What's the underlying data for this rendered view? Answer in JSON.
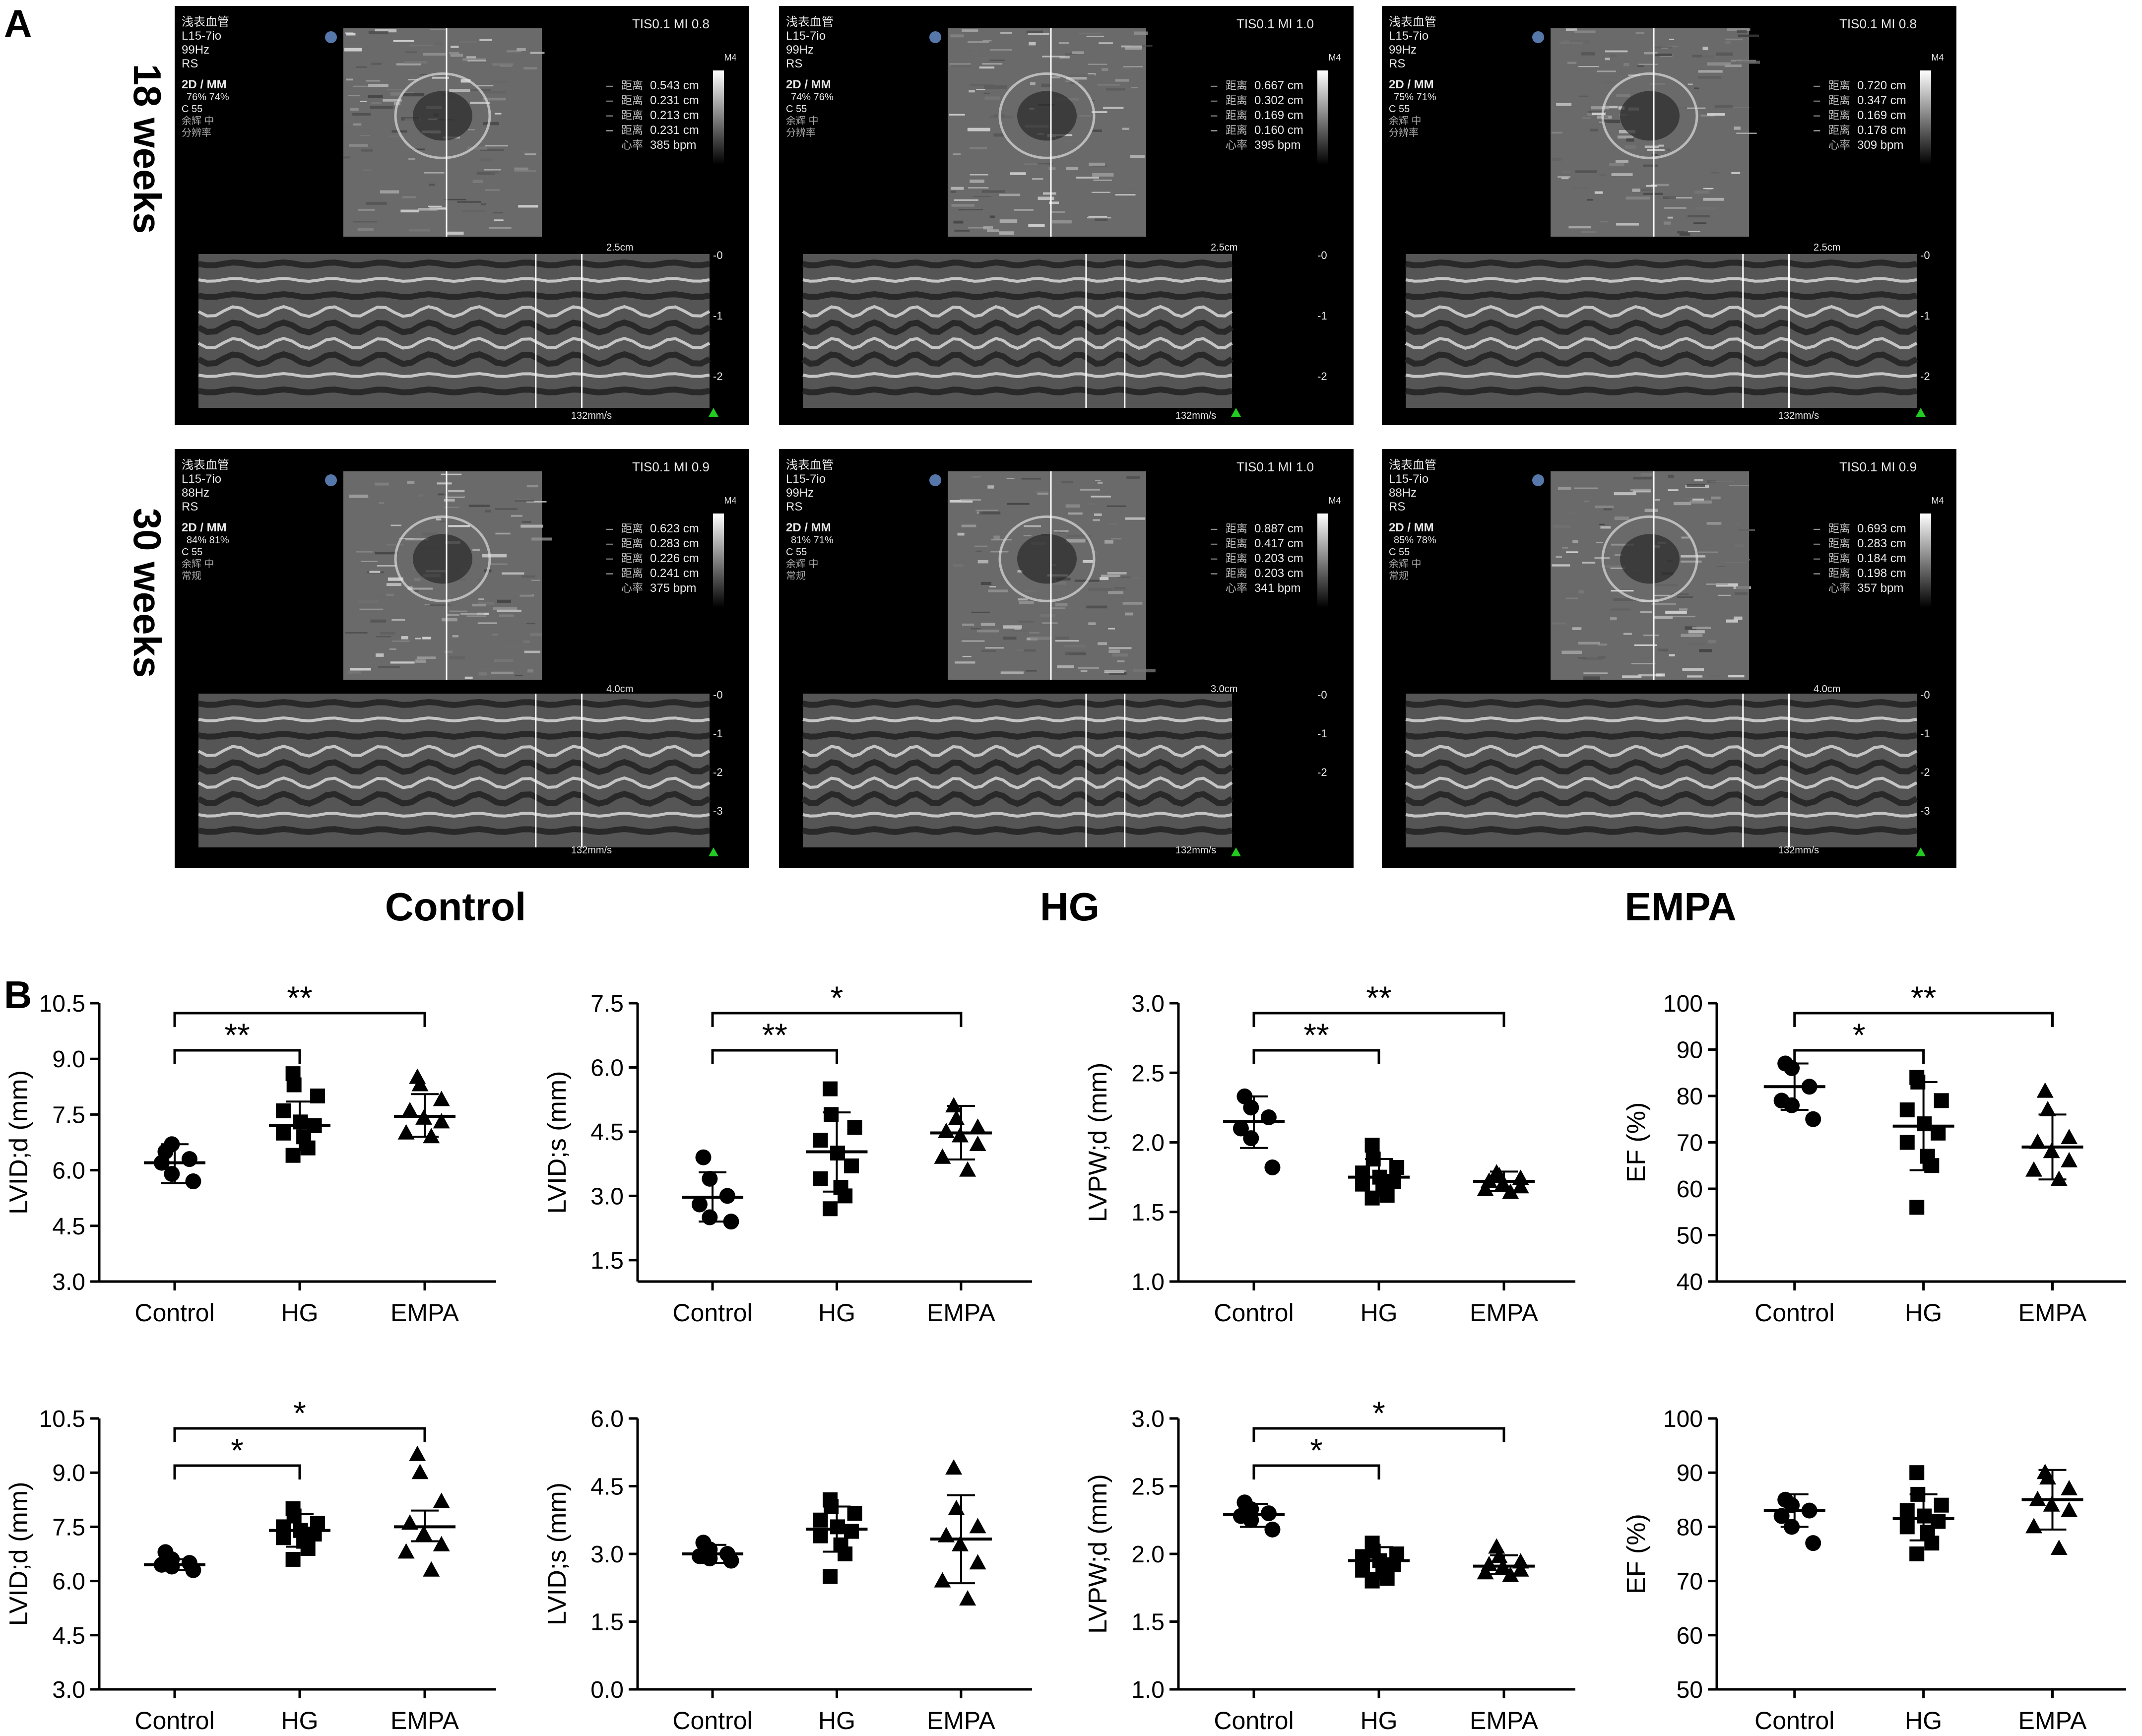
{
  "panel_labels": {
    "a": "A",
    "b": "B"
  },
  "row_labels": [
    "18 weeks",
    "30 weeks"
  ],
  "column_labels": [
    "Control",
    "HG",
    "EMPA"
  ],
  "ultrasound": {
    "header_lines": [
      "浅表血管",
      "L15-7io"
    ],
    "status": {
      "18_weeks": [
        "TIS0.1  MI 0.8",
        "TIS0.1  MI 1.0",
        "TIS0.1  MI 0.8"
      ],
      "30_weeks": [
        "TIS0.1  MI 0.9",
        "TIS0.1  MI 1.0",
        "TIS0.1  MI 0.9"
      ]
    },
    "panels": [
      {
        "row": 0,
        "col": 0,
        "freq": "99Hz",
        "mode": "2D / MM",
        "pct": "76%  74%",
        "extra": [
          "RS",
          "C 55",
          "余辉 中",
          "分辨率"
        ],
        "measure_label": "距离",
        "distances": [
          "0.543 cm",
          "0.231 cm",
          "0.213 cm",
          "0.231 cm"
        ],
        "hr_label": "心率",
        "hr": "385 bpm",
        "depth": "2.5cm",
        "speed": "132mm/s",
        "m4": "M4",
        "depth_ticks": [
          "0",
          "1",
          "2"
        ]
      },
      {
        "row": 0,
        "col": 1,
        "freq": "99Hz",
        "mode": "2D / MM",
        "pct": "74%  76%",
        "extra": [
          "RS",
          "C 55",
          "余辉 中",
          "分辨率"
        ],
        "measure_label": "距离",
        "distances": [
          "0.667 cm",
          "0.302 cm",
          "0.169 cm",
          "0.160 cm"
        ],
        "hr_label": "心率",
        "hr": "395 bpm",
        "depth": "2.5cm",
        "speed": "132mm/s",
        "m4": "M4",
        "depth_ticks": [
          "0",
          "1",
          "2"
        ]
      },
      {
        "row": 0,
        "col": 2,
        "freq": "99Hz",
        "mode": "2D / MM",
        "pct": "75%  71%",
        "extra": [
          "RS",
          "C 55",
          "余辉 中",
          "分辨率"
        ],
        "measure_label": "距离",
        "distances": [
          "0.720 cm",
          "0.347 cm",
          "0.169 cm",
          "0.178 cm"
        ],
        "hr_label": "心率",
        "hr": "309 bpm",
        "depth": "2.5cm",
        "speed": "132mm/s",
        "m4": "M4",
        "depth_ticks": [
          "0",
          "1",
          "2"
        ]
      },
      {
        "row": 1,
        "col": 0,
        "freq": "88Hz",
        "mode": "2D / MM",
        "pct": "84%  81%",
        "extra": [
          "RS",
          "C 55",
          "余辉 中",
          "常规"
        ],
        "measure_label": "距离",
        "distances": [
          "0.623 cm",
          "0.283 cm",
          "0.226 cm",
          "0.241 cm"
        ],
        "hr_label": "心率",
        "hr": "375 bpm",
        "depth": "4.0cm",
        "speed": "132mm/s",
        "m4": "M4",
        "depth_ticks": [
          "0",
          "1",
          "2",
          "3"
        ]
      },
      {
        "row": 1,
        "col": 1,
        "freq": "99Hz",
        "mode": "2D / MM",
        "pct": "81%  71%",
        "extra": [
          "RS",
          "C 55",
          "余辉 中",
          "常规"
        ],
        "measure_label": "距离",
        "distances": [
          "0.887 cm",
          "0.417 cm",
          "0.203 cm",
          "0.203 cm"
        ],
        "hr_label": "心率",
        "hr": "341 bpm",
        "depth": "3.0cm",
        "speed": "132mm/s",
        "m4": "M4",
        "depth_ticks": [
          "0",
          "1",
          "2"
        ]
      },
      {
        "row": 1,
        "col": 2,
        "freq": "88Hz",
        "mode": "2D / MM",
        "pct": "85%  78%",
        "extra": [
          "RS",
          "C 55",
          "余辉 中",
          "常规"
        ],
        "measure_label": "距离",
        "distances": [
          "0.693 cm",
          "0.283 cm",
          "0.184 cm",
          "0.198 cm"
        ],
        "hr_label": "心率",
        "hr": "357 bpm",
        "depth": "4.0cm",
        "speed": "132mm/s",
        "m4": "M4",
        "depth_ticks": [
          "0",
          "1",
          "2",
          "3"
        ]
      }
    ]
  },
  "chart_data": [
    {
      "type": "scatter",
      "ylabel": "LVID;d (mm)",
      "ylim": [
        3.0,
        10.5
      ],
      "yticks": [
        "3.0",
        "4.5",
        "6.0",
        "7.5",
        "9.0",
        "10.5"
      ],
      "categories": [
        "Control",
        "HG",
        "EMPA"
      ],
      "groups": [
        {
          "name": "Control",
          "marker": "circle",
          "points": [
            6.5,
            6.7,
            6.3,
            6.2,
            5.9,
            5.7
          ],
          "mean": 6.2,
          "sd": [
            5.65,
            6.7
          ]
        },
        {
          "name": "HG",
          "marker": "square",
          "points": [
            8.6,
            8.3,
            8.0,
            7.6,
            7.3,
            7.2,
            7.0,
            6.9,
            6.6,
            6.4
          ],
          "mean": 7.2,
          "sd": [
            6.55,
            7.85
          ]
        },
        {
          "name": "EMPA",
          "marker": "triangle",
          "points": [
            8.5,
            8.3,
            7.9,
            7.6,
            7.4,
            7.3,
            7.0,
            6.9
          ],
          "mean": 7.45,
          "sd": [
            6.9,
            8.05
          ]
        }
      ],
      "brackets": [
        {
          "from": 0,
          "to": 1,
          "label": "**"
        },
        {
          "from": 0,
          "to": 2,
          "label": "**"
        }
      ]
    },
    {
      "type": "scatter",
      "ylabel": "LVID;s (mm)",
      "ylim": [
        1.0,
        7.5
      ],
      "yticks": [
        "1.5",
        "3.0",
        "4.5",
        "6.0",
        "7.5"
      ],
      "categories": [
        "Control",
        "HG",
        "EMPA"
      ],
      "groups": [
        {
          "name": "Control",
          "marker": "circle",
          "points": [
            3.9,
            3.4,
            3.0,
            2.8,
            2.5,
            2.4
          ],
          "mean": 2.97,
          "sd": [
            2.4,
            3.55
          ]
        },
        {
          "name": "HG",
          "marker": "square",
          "points": [
            5.5,
            4.9,
            4.6,
            4.3,
            4.0,
            3.7,
            3.4,
            3.2,
            3.0,
            2.7
          ],
          "mean": 4.03,
          "sd": [
            3.1,
            4.95
          ]
        },
        {
          "name": "EMPA",
          "marker": "triangle",
          "points": [
            5.1,
            4.8,
            4.6,
            4.5,
            4.4,
            4.2,
            3.9,
            3.6
          ],
          "mean": 4.47,
          "sd": [
            3.85,
            5.1
          ]
        }
      ],
      "brackets": [
        {
          "from": 0,
          "to": 1,
          "label": "**"
        },
        {
          "from": 0,
          "to": 2,
          "label": "*"
        }
      ]
    },
    {
      "type": "scatter",
      "ylabel": "LVPW;d (mm)",
      "ylim": [
        1.0,
        3.0
      ],
      "yticks": [
        "1.0",
        "1.5",
        "2.0",
        "2.5",
        "3.0"
      ],
      "categories": [
        "Control",
        "HG",
        "EMPA"
      ],
      "groups": [
        {
          "name": "Control",
          "marker": "circle",
          "points": [
            2.33,
            2.25,
            2.18,
            2.1,
            2.03,
            1.82
          ],
          "mean": 2.15,
          "sd": [
            1.96,
            2.33
          ]
        },
        {
          "name": "HG",
          "marker": "square",
          "points": [
            1.98,
            1.88,
            1.82,
            1.78,
            1.75,
            1.72,
            1.7,
            1.66,
            1.62,
            1.6
          ],
          "mean": 1.75,
          "sd": [
            1.62,
            1.88
          ]
        },
        {
          "name": "EMPA",
          "marker": "triangle",
          "points": [
            1.78,
            1.76,
            1.74,
            1.72,
            1.7,
            1.68,
            1.66,
            1.64
          ],
          "mean": 1.72,
          "sd": [
            1.65,
            1.79
          ]
        }
      ],
      "brackets": [
        {
          "from": 0,
          "to": 1,
          "label": "**"
        },
        {
          "from": 0,
          "to": 2,
          "label": "**"
        }
      ]
    },
    {
      "type": "scatter",
      "ylabel": "EF (%)",
      "ylim": [
        40,
        100
      ],
      "yticks": [
        "40",
        "50",
        "60",
        "70",
        "80",
        "90",
        "100"
      ],
      "categories": [
        "Control",
        "HG",
        "EMPA"
      ],
      "groups": [
        {
          "name": "Control",
          "marker": "circle",
          "points": [
            87,
            86,
            82,
            79,
            78,
            75
          ],
          "mean": 82,
          "sd": [
            77,
            87
          ]
        },
        {
          "name": "HG",
          "marker": "square",
          "points": [
            84,
            83,
            79,
            77,
            74,
            72,
            70,
            67,
            65,
            56
          ],
          "mean": 73.5,
          "sd": [
            64,
            83
          ]
        },
        {
          "name": "EMPA",
          "marker": "triangle",
          "points": [
            81,
            77,
            71,
            70,
            68,
            66,
            64,
            62
          ],
          "mean": 69,
          "sd": [
            62,
            76
          ]
        }
      ],
      "brackets": [
        {
          "from": 0,
          "to": 1,
          "label": "*"
        },
        {
          "from": 0,
          "to": 2,
          "label": "**"
        }
      ]
    },
    {
      "type": "scatter",
      "ylabel": "LVID;d (mm)",
      "ylim": [
        3.0,
        10.5
      ],
      "yticks": [
        "3.0",
        "4.5",
        "6.0",
        "7.5",
        "9.0",
        "10.5"
      ],
      "categories": [
        "Control",
        "HG",
        "EMPA"
      ],
      "groups": [
        {
          "name": "Control",
          "marker": "circle",
          "points": [
            6.8,
            6.6,
            6.5,
            6.45,
            6.4,
            6.3
          ],
          "mean": 6.45,
          "sd": [
            6.3,
            6.6
          ]
        },
        {
          "name": "HG",
          "marker": "square",
          "points": [
            8.0,
            7.8,
            7.6,
            7.5,
            7.4,
            7.3,
            7.2,
            7.1,
            6.9,
            6.6
          ],
          "mean": 7.4,
          "sd": [
            6.95,
            7.85
          ]
        },
        {
          "name": "EMPA",
          "marker": "triangle",
          "points": [
            9.5,
            9.0,
            8.2,
            7.6,
            7.3,
            7.0,
            6.8,
            6.3
          ],
          "mean": 7.5,
          "sd": [
            7.1,
            7.95
          ]
        }
      ],
      "brackets": [
        {
          "from": 0,
          "to": 1,
          "label": "*"
        },
        {
          "from": 0,
          "to": 2,
          "label": "*"
        }
      ]
    },
    {
      "type": "scatter",
      "ylabel": "LVID;s (mm)",
      "ylim": [
        0.0,
        6.0
      ],
      "yticks": [
        "0.0",
        "1.5",
        "3.0",
        "4.5",
        "6.0"
      ],
      "categories": [
        "Control",
        "HG",
        "EMPA"
      ],
      "groups": [
        {
          "name": "Control",
          "marker": "circle",
          "points": [
            3.25,
            3.1,
            3.0,
            2.95,
            2.9,
            2.85
          ],
          "mean": 3.0,
          "sd": [
            2.8,
            3.2
          ]
        },
        {
          "name": "HG",
          "marker": "square",
          "points": [
            4.2,
            4.05,
            3.9,
            3.75,
            3.6,
            3.5,
            3.4,
            3.2,
            3.0,
            2.5
          ],
          "mean": 3.55,
          "sd": [
            3.05,
            4.05
          ]
        },
        {
          "name": "EMPA",
          "marker": "triangle",
          "points": [
            4.9,
            4.0,
            3.6,
            3.4,
            3.2,
            2.8,
            2.4,
            2.0
          ],
          "mean": 3.33,
          "sd": [
            2.35,
            4.3
          ]
        }
      ],
      "brackets": []
    },
    {
      "type": "scatter",
      "ylabel": "LVPW;d (mm)",
      "ylim": [
        1.0,
        3.0
      ],
      "yticks": [
        "1.0",
        "1.5",
        "2.0",
        "2.5",
        "3.0"
      ],
      "categories": [
        "Control",
        "HG",
        "EMPA"
      ],
      "groups": [
        {
          "name": "Control",
          "marker": "circle",
          "points": [
            2.38,
            2.33,
            2.3,
            2.28,
            2.25,
            2.18
          ],
          "mean": 2.29,
          "sd": [
            2.2,
            2.37
          ]
        },
        {
          "name": "HG",
          "marker": "square",
          "points": [
            2.08,
            2.02,
            2.0,
            1.98,
            1.95,
            1.92,
            1.88,
            1.86,
            1.82,
            1.8
          ],
          "mean": 1.95,
          "sd": [
            1.86,
            2.05
          ]
        },
        {
          "name": "EMPA",
          "marker": "triangle",
          "points": [
            2.05,
            1.98,
            1.94,
            1.92,
            1.9,
            1.88,
            1.86,
            1.84
          ],
          "mean": 1.91,
          "sd": [
            1.85,
            1.99
          ]
        }
      ],
      "brackets": [
        {
          "from": 0,
          "to": 1,
          "label": "*"
        },
        {
          "from": 0,
          "to": 2,
          "label": "*"
        }
      ]
    },
    {
      "type": "scatter",
      "ylabel": "EF (%)",
      "ylim": [
        50,
        100
      ],
      "yticks": [
        "50",
        "60",
        "70",
        "80",
        "90",
        "100"
      ],
      "categories": [
        "Control",
        "HG",
        "EMPA"
      ],
      "groups": [
        {
          "name": "Control",
          "marker": "circle",
          "points": [
            85,
            84,
            83,
            82,
            80,
            77
          ],
          "mean": 83,
          "sd": [
            80,
            86
          ]
        },
        {
          "name": "HG",
          "marker": "square",
          "points": [
            90,
            86,
            84,
            83,
            82,
            81,
            80,
            79,
            77,
            75
          ],
          "mean": 81.5,
          "sd": [
            77.5,
            86
          ]
        },
        {
          "name": "EMPA",
          "marker": "triangle",
          "points": [
            90,
            89,
            87,
            85,
            84,
            83,
            80,
            76
          ],
          "mean": 85,
          "sd": [
            79.5,
            90.5
          ]
        }
      ],
      "brackets": []
    }
  ]
}
